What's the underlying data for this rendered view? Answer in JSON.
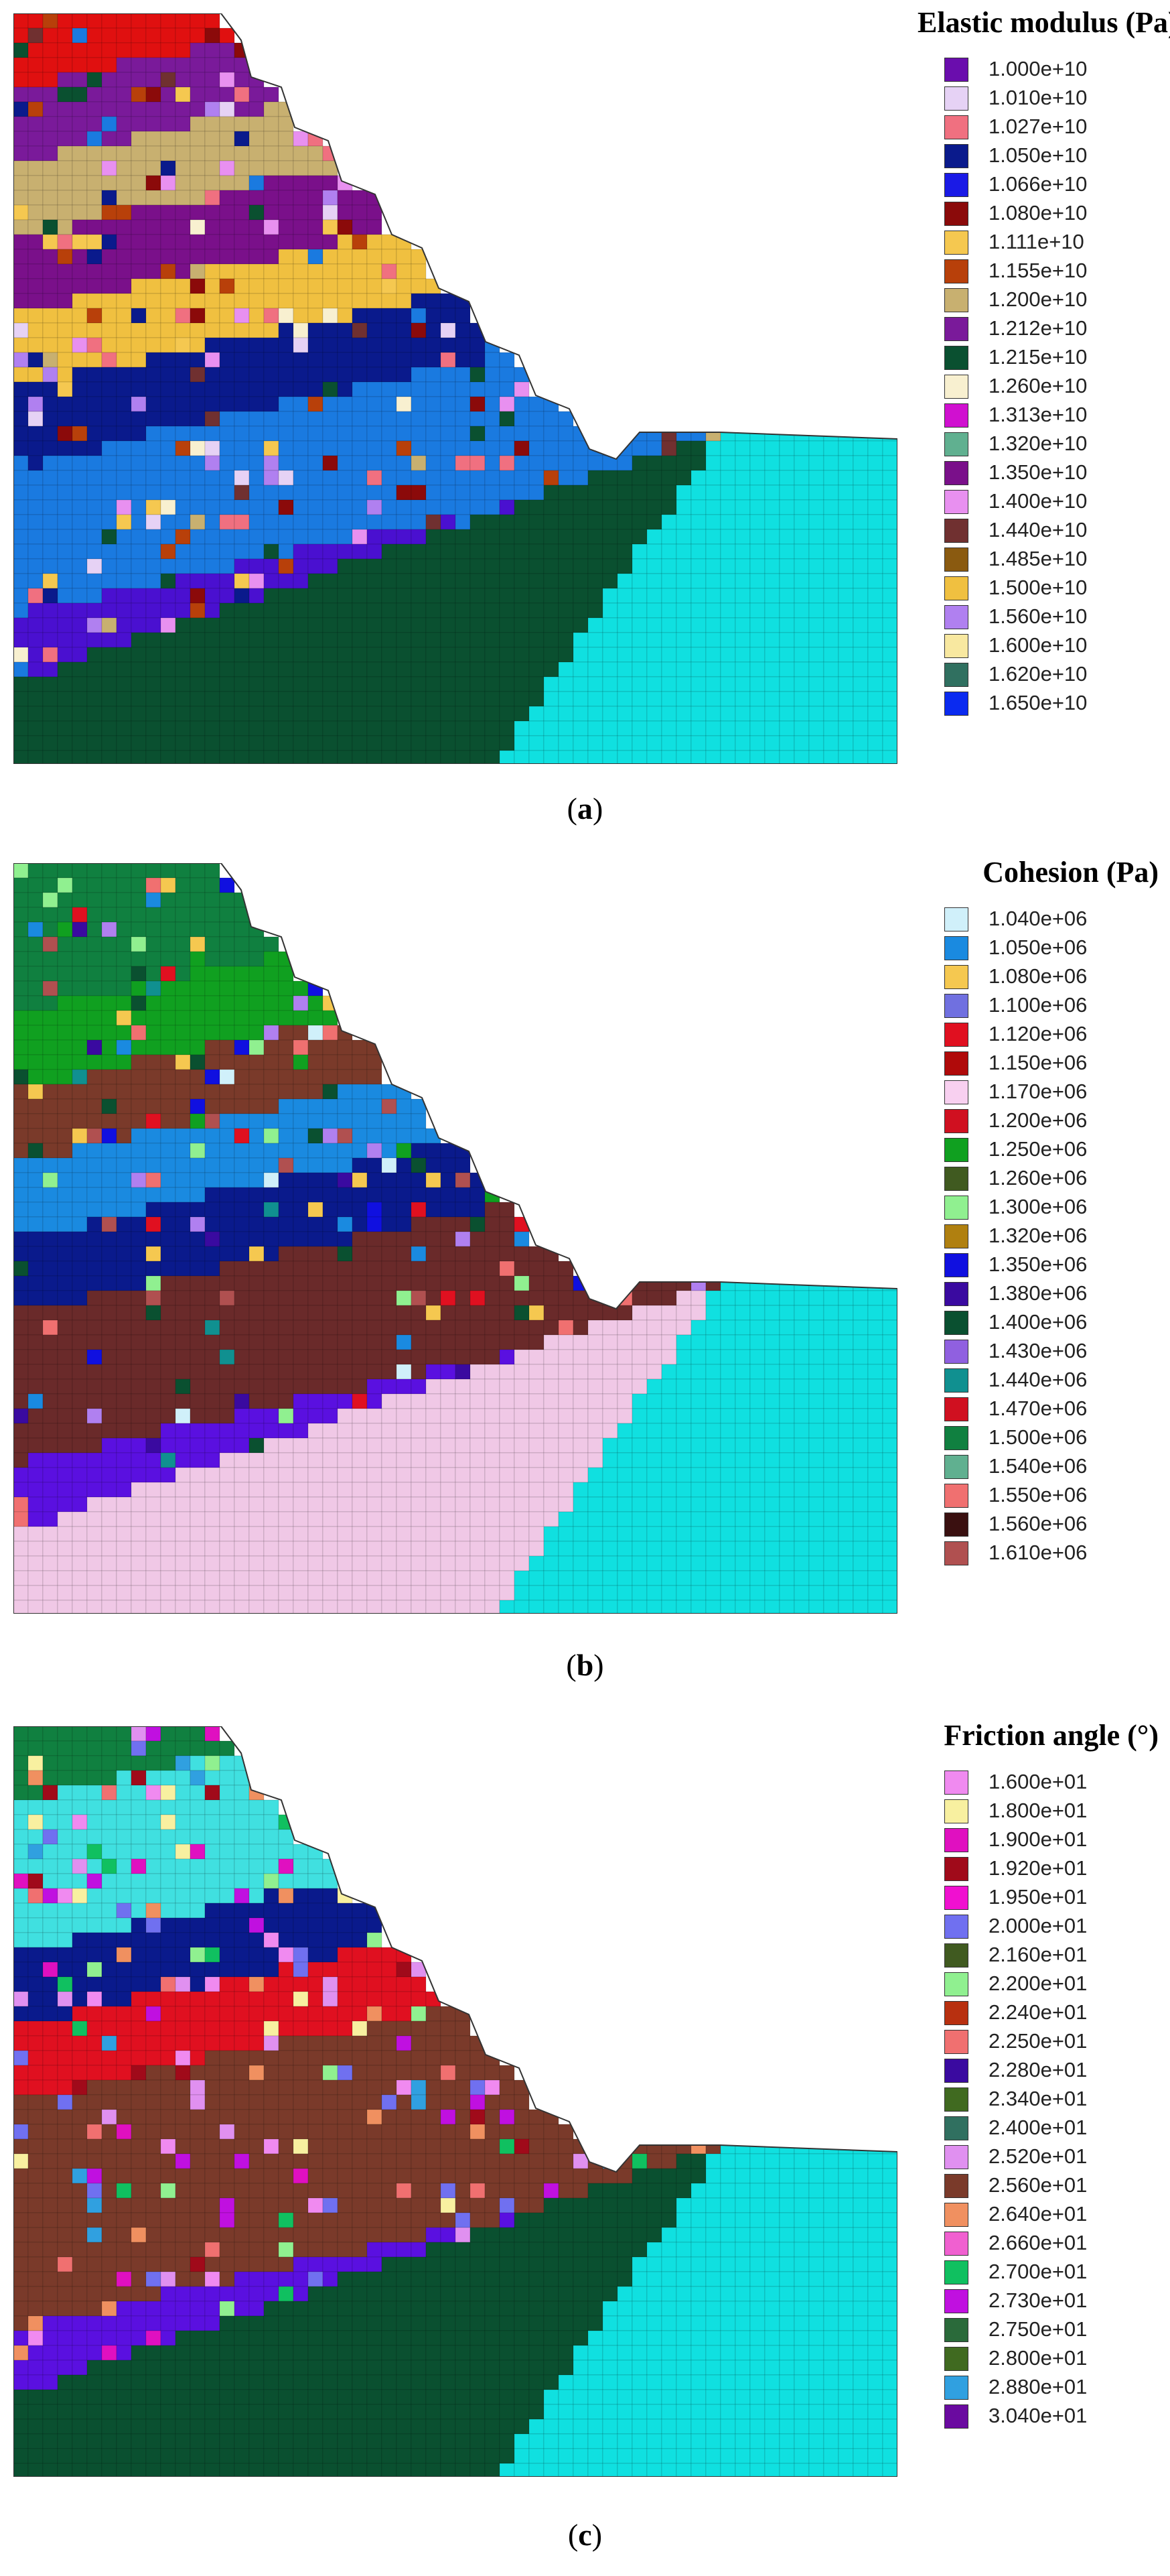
{
  "panels": [
    {
      "id": "a",
      "caption_letter": "a",
      "legend": {
        "title": "Elastic modulus (Pa)",
        "items": [
          {
            "label": "1.000e+10",
            "color": "#6a0dad"
          },
          {
            "label": "1.010e+10",
            "color": "#e6d2f5"
          },
          {
            "label": "1.027e+10",
            "color": "#f07080"
          },
          {
            "label": "1.050e+10",
            "color": "#0a1a8c"
          },
          {
            "label": "1.066e+10",
            "color": "#1a1ae6"
          },
          {
            "label": "1.080e+10",
            "color": "#8b0a0a"
          },
          {
            "label": "1.111e+10",
            "color": "#f5c850"
          },
          {
            "label": "1.155e+10",
            "color": "#b8400a"
          },
          {
            "label": "1.200e+10",
            "color": "#c8b070"
          },
          {
            "label": "1.212e+10",
            "color": "#7a1a9a"
          },
          {
            "label": "1.215e+10",
            "color": "#0a5030"
          },
          {
            "label": "1.260e+10",
            "color": "#f8f0d0"
          },
          {
            "label": "1.313e+10",
            "color": "#d010d0"
          },
          {
            "label": "1.320e+10",
            "color": "#60b090"
          },
          {
            "label": "1.350e+10",
            "color": "#7a108a"
          },
          {
            "label": "1.400e+10",
            "color": "#e890f0"
          },
          {
            "label": "1.440e+10",
            "color": "#703030"
          },
          {
            "label": "1.485e+10",
            "color": "#8a5a10"
          },
          {
            "label": "1.500e+10",
            "color": "#f0c040"
          },
          {
            "label": "1.560e+10",
            "color": "#b080f0"
          },
          {
            "label": "1.600e+10",
            "color": "#f8e8a0"
          },
          {
            "label": "1.620e+10",
            "color": "#307060"
          },
          {
            "label": "1.650e+10",
            "color": "#0a2af0"
          }
        ]
      },
      "layers": [
        "#e01010",
        "#7a1a9a",
        "#c8b070",
        "#7a108a",
        "#f0c040",
        "#0a1a8c",
        "#1a7ae0",
        "#1a7ae0",
        "#4a10d0",
        "#4a10d0"
      ],
      "base": "#0a5030",
      "toe": "#10e0e0",
      "sprinkle": [
        "#e6d2f5",
        "#f07080",
        "#8b0a0a",
        "#f5c850",
        "#0a1a8c",
        "#b8400a",
        "#c8b070",
        "#f8f0d0",
        "#e890f0",
        "#703030",
        "#b080f0",
        "#1a7ae0",
        "#0a5030"
      ]
    },
    {
      "id": "b",
      "caption_letter": "b",
      "legend": {
        "title": "Cohesion (Pa)",
        "items": [
          {
            "label": "1.040e+06",
            "color": "#d0f0fa"
          },
          {
            "label": "1.050e+06",
            "color": "#1a8ae0"
          },
          {
            "label": "1.080e+06",
            "color": "#f5c850"
          },
          {
            "label": "1.100e+06",
            "color": "#7070e0"
          },
          {
            "label": "1.120e+06",
            "color": "#e01020"
          },
          {
            "label": "1.150e+06",
            "color": "#b00a0a"
          },
          {
            "label": "1.170e+06",
            "color": "#f8d0f0"
          },
          {
            "label": "1.200e+06",
            "color": "#d01020"
          },
          {
            "label": "1.250e+06",
            "color": "#10a020"
          },
          {
            "label": "1.260e+06",
            "color": "#405a20"
          },
          {
            "label": "1.300e+06",
            "color": "#90f090"
          },
          {
            "label": "1.320e+06",
            "color": "#b08010"
          },
          {
            "label": "1.350e+06",
            "color": "#1010e0"
          },
          {
            "label": "1.380e+06",
            "color": "#3a0aa0"
          },
          {
            "label": "1.400e+06",
            "color": "#0a5030"
          },
          {
            "label": "1.430e+06",
            "color": "#9060e0"
          },
          {
            "label": "1.440e+06",
            "color": "#109090"
          },
          {
            "label": "1.470e+06",
            "color": "#d01020"
          },
          {
            "label": "1.500e+06",
            "color": "#108040"
          },
          {
            "label": "1.540e+06",
            "color": "#60b090"
          },
          {
            "label": "1.550e+06",
            "color": "#f07070"
          },
          {
            "label": "1.560e+06",
            "color": "#3a1010"
          },
          {
            "label": "1.610e+06",
            "color": "#b05050"
          }
        ]
      },
      "layers": [
        "#108040",
        "#108040",
        "#10a020",
        "#7a3a2a",
        "#1a8ae0",
        "#0a1a8c",
        "#6a2a2a",
        "#6a2a2a",
        "#5a10e0",
        "#5a10e0"
      ],
      "base": "#f0c8e6",
      "toe": "#10e0e0",
      "sprinkle": [
        "#e01020",
        "#10a020",
        "#1a8ae0",
        "#f5c850",
        "#1010e0",
        "#90f090",
        "#f07070",
        "#b080f0",
        "#109090",
        "#3a0aa0",
        "#d0f0fa",
        "#b05050",
        "#0a5030"
      ]
    },
    {
      "id": "c",
      "caption_letter": "c",
      "legend": {
        "title": "Friction angle (°)",
        "items": [
          {
            "label": "1.600e+01",
            "color": "#f08af0"
          },
          {
            "label": "1.800e+01",
            "color": "#f8f0a0"
          },
          {
            "label": "1.900e+01",
            "color": "#e010c0"
          },
          {
            "label": "1.920e+01",
            "color": "#a00a1a"
          },
          {
            "label": "1.950e+01",
            "color": "#f010d0"
          },
          {
            "label": "2.000e+01",
            "color": "#7070f0"
          },
          {
            "label": "2.160e+01",
            "color": "#405a20"
          },
          {
            "label": "2.200e+01",
            "color": "#90f090"
          },
          {
            "label": "2.240e+01",
            "color": "#b83010"
          },
          {
            "label": "2.250e+01",
            "color": "#f07070"
          },
          {
            "label": "2.280e+01",
            "color": "#3a0aa0"
          },
          {
            "label": "2.340e+01",
            "color": "#406a20"
          },
          {
            "label": "2.400e+01",
            "color": "#307060"
          },
          {
            "label": "2.520e+01",
            "color": "#e090f0"
          },
          {
            "label": "2.560e+01",
            "color": "#7a3a2a"
          },
          {
            "label": "2.640e+01",
            "color": "#f09060"
          },
          {
            "label": "2.660e+01",
            "color": "#f060d0"
          },
          {
            "label": "2.700e+01",
            "color": "#10c060"
          },
          {
            "label": "2.730e+01",
            "color": "#c010e0"
          },
          {
            "label": "2.750e+01",
            "color": "#2a6a3a"
          },
          {
            "label": "2.800e+01",
            "color": "#406a20"
          },
          {
            "label": "2.880e+01",
            "color": "#30a0e0"
          },
          {
            "label": "3.040e+01",
            "color": "#6a0aa0"
          }
        ]
      },
      "layers": [
        "#108040",
        "#40e0e0",
        "#40e0e0",
        "#0a1a8c",
        "#e01020",
        "#7a3a2a",
        "#7a3a2a",
        "#7a3a2a",
        "#5a10e0",
        "#5a10e0"
      ],
      "base": "#0a5030",
      "toe": "#10e0e0",
      "sprinkle": [
        "#f08af0",
        "#f8f0a0",
        "#e010c0",
        "#90f090",
        "#7070f0",
        "#f07070",
        "#e090f0",
        "#10c060",
        "#30a0e0",
        "#a00a1a",
        "#f09060",
        "#c010e0"
      ]
    }
  ]
}
